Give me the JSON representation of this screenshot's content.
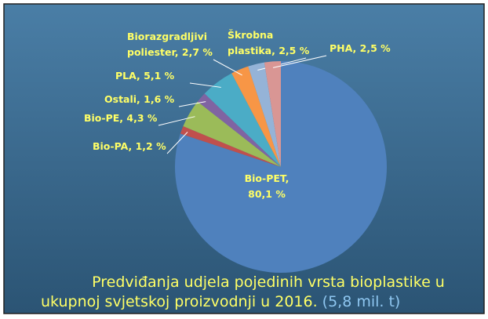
{
  "chart_data": {
    "type": "pie",
    "categories": [
      "Bio-PET",
      "Bio-PA",
      "Bio-PE",
      "Ostali",
      "PLA",
      "Biorazgradljivi poliester",
      "Škrobna plastika",
      "PHA"
    ],
    "values": [
      80.1,
      1.2,
      4.3,
      1.6,
      5.1,
      2.7,
      2.5,
      2.5
    ],
    "labels": [
      [
        "Bio-PET,",
        "80,1 %"
      ],
      [
        "Bio-PA, 1,2 %"
      ],
      [
        "Bio-PE, 4,3 %"
      ],
      [
        "Ostali, 1,6 %"
      ],
      [
        "PLA, 5,1 %"
      ],
      [
        "Biorazgradljivi",
        "poliester, 2,7 %"
      ],
      [
        "Škrobna",
        "plastika, 2,5 %"
      ],
      [
        "PHA, 2,5 %"
      ]
    ],
    "colors": [
      "#4f81bd",
      "#c0504d",
      "#9bbb59",
      "#8064a2",
      "#4bacc6",
      "#f79646",
      "#95b3d7",
      "#d99694"
    ],
    "title": [
      "Predviđanja udjela pojedinih vrsta bioplastike u",
      "ukupnoj svjetskoj proizvodnji u 2016."
    ],
    "note": "(5,8 mil. t)"
  }
}
